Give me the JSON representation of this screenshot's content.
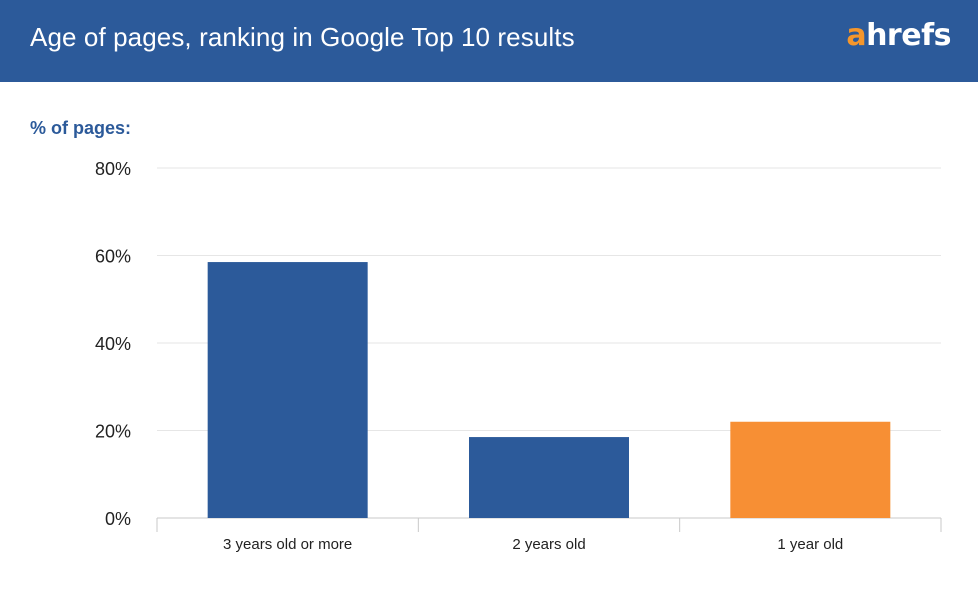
{
  "header": {
    "title": "Age of pages, ranking in Google Top 10 results",
    "logo_accent": "a",
    "logo_rest": "hrefs"
  },
  "colors": {
    "brand_blue": "#2c5a9a",
    "logo_orange": "#f5962b",
    "bar_blue": "#2c5a9a",
    "bar_orange": "#f78f34"
  },
  "chart_data": {
    "type": "bar",
    "title": "Age of pages, ranking in Google Top 10 results",
    "ylabel": "% of pages:",
    "xlabel": "",
    "categories": [
      "3 years old or more",
      "2 years old",
      "1 year old"
    ],
    "values": [
      58.5,
      18.5,
      22
    ],
    "bar_colors": [
      "#2c5a9a",
      "#2c5a9a",
      "#f78f34"
    ],
    "ylim": [
      0,
      80
    ],
    "yticks": [
      0,
      20,
      40,
      60,
      80
    ],
    "ytick_labels": [
      "0%",
      "20%",
      "40%",
      "60%",
      "80%"
    ],
    "grid": true,
    "legend": "none"
  }
}
